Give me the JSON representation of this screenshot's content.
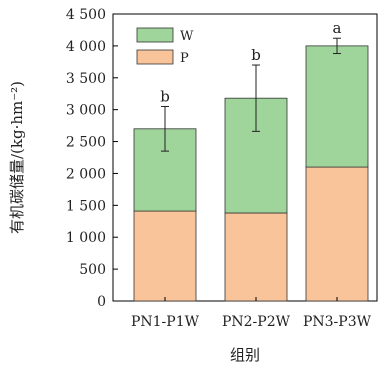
{
  "chart_data": {
    "type": "bar",
    "stacked": true,
    "categories": [
      "PN1-P1W",
      "PN2-P2W",
      "PN3-P3W"
    ],
    "series": [
      {
        "name": "P",
        "values": [
          1410,
          1380,
          2100
        ],
        "color": "#f9c49a"
      },
      {
        "name": "W",
        "values": [
          1290,
          1800,
          1900
        ],
        "color": "#9fd49b"
      }
    ],
    "totals": [
      2700,
      3180,
      4000
    ],
    "error_plus": [
      350,
      520,
      120
    ],
    "error_minus": [
      350,
      520,
      120
    ],
    "significance": [
      "b",
      "b",
      "a"
    ],
    "xlabel": "组别",
    "ylabel": "有机碳储量/(kg·hm⁻²)",
    "ylim": [
      0,
      4500
    ],
    "yticks": [
      0,
      500,
      1000,
      1500,
      2000,
      2500,
      3000,
      3500,
      4000,
      4500
    ],
    "ytick_labels": [
      "0",
      "500",
      "1 000",
      "1 500",
      "2 000",
      "2 500",
      "3 000",
      "3 500",
      "4 000",
      "4 500"
    ],
    "legend": {
      "position": "top-left",
      "entries": [
        "W",
        "P"
      ]
    },
    "grid": false
  }
}
